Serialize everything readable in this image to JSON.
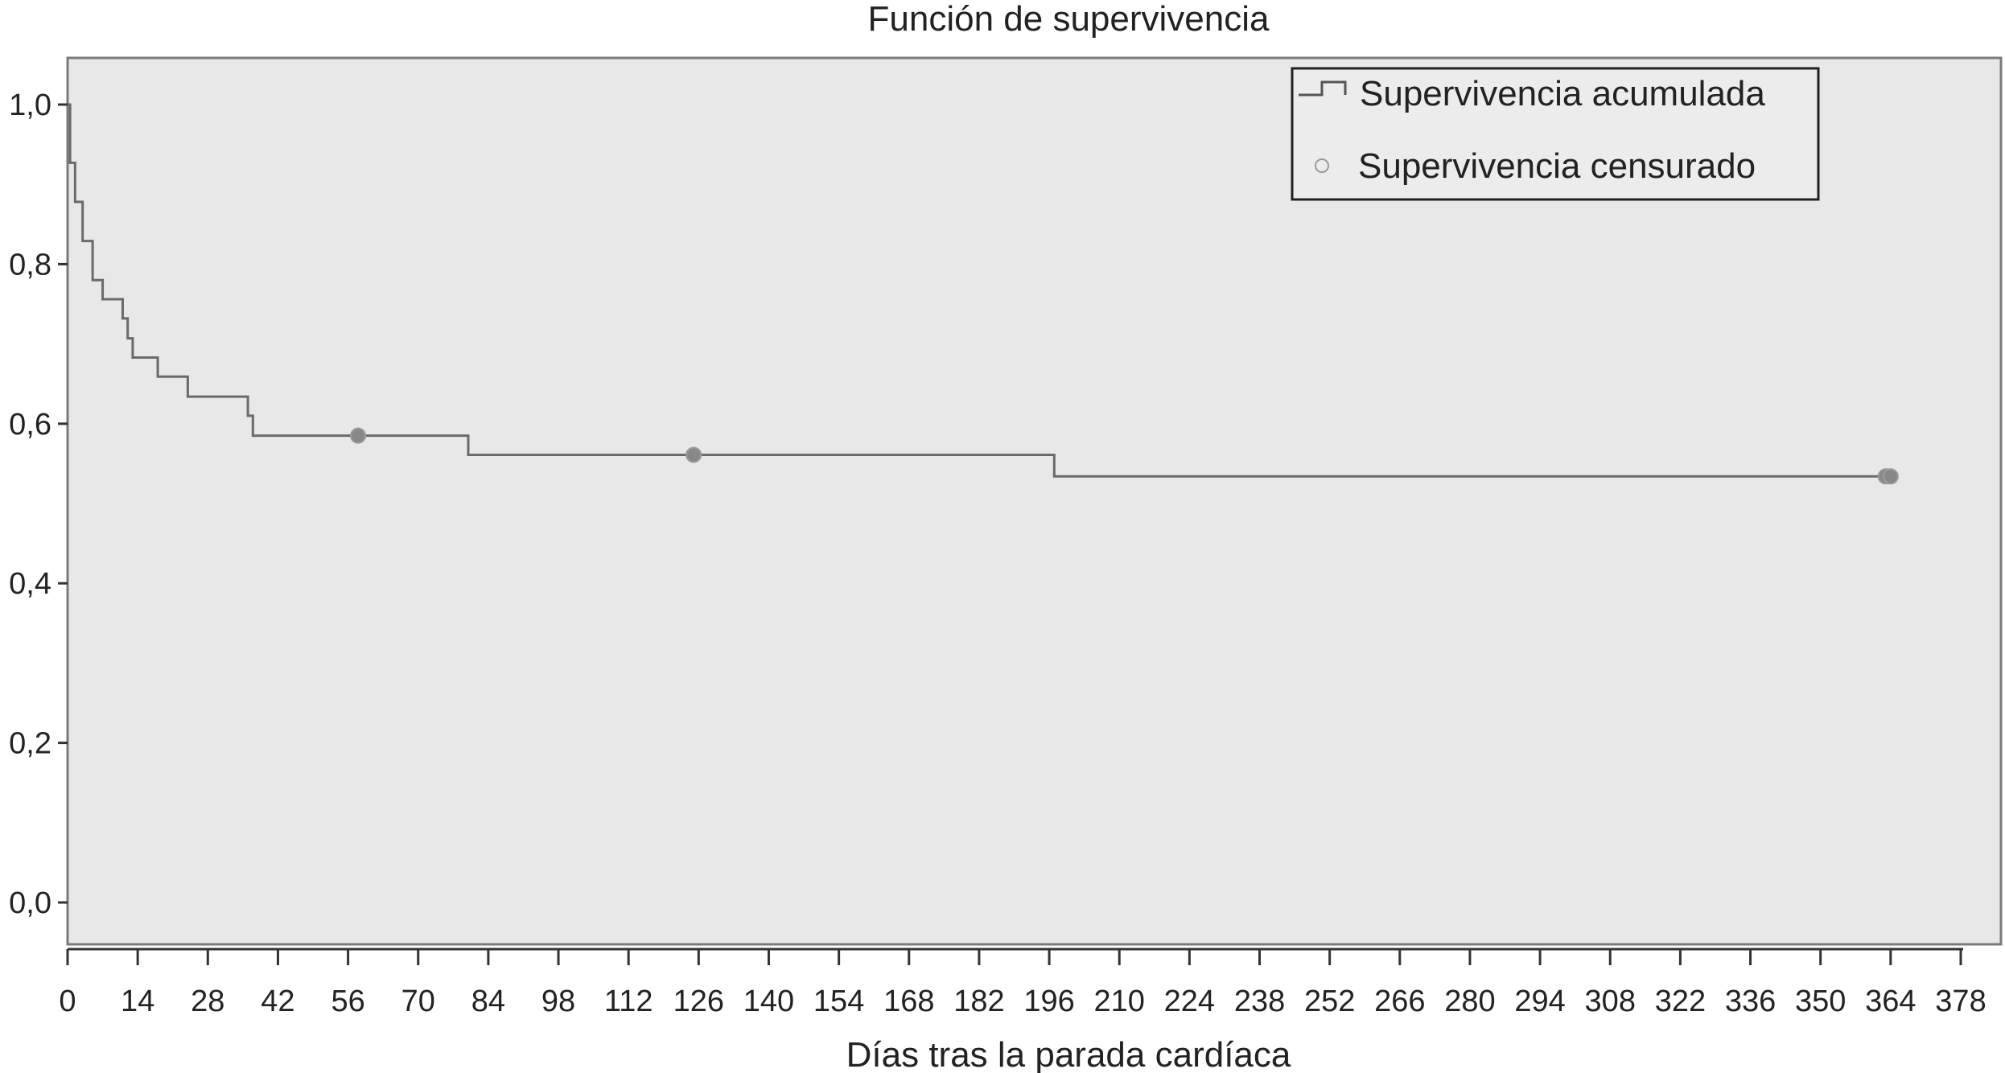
{
  "chart_data": {
    "type": "line",
    "title": "Función de supervivencia",
    "xlabel": "Días tras la parada cardíaca",
    "ylabel": "",
    "xlim": [
      0,
      378
    ],
    "ylim": [
      0,
      1
    ],
    "x_ticks": [
      0,
      14,
      28,
      42,
      56,
      70,
      84,
      98,
      112,
      126,
      140,
      154,
      168,
      182,
      196,
      210,
      224,
      238,
      252,
      266,
      280,
      294,
      308,
      322,
      336,
      350,
      364,
      378
    ],
    "x_tick_labels": [
      "0",
      "14",
      "28",
      "42",
      "56",
      "70",
      "84",
      "98",
      "112",
      "126",
      "140",
      "154",
      "168",
      "182",
      "196",
      "210",
      "224",
      "238",
      "252",
      "266",
      "280",
      "294",
      "308",
      "322",
      "336",
      "350",
      "364",
      "378"
    ],
    "y_ticks": [
      0,
      0.2,
      0.4,
      0.6,
      0.8,
      1.0
    ],
    "y_tick_labels": [
      "0,0",
      "0,2",
      "0,4",
      "0,6",
      "0,8",
      "1,0"
    ],
    "grid": false,
    "legend_position": "top-right",
    "series": [
      {
        "name": "Supervivencia acumulada",
        "kind": "step",
        "color": "#6a6a6a",
        "x": [
          0,
          0.5,
          1.5,
          3,
          5,
          7,
          11,
          12,
          13,
          18,
          24,
          36,
          37,
          80,
          197,
          364
        ],
        "y": [
          1.0,
          0.927,
          0.878,
          0.829,
          0.78,
          0.756,
          0.732,
          0.707,
          0.683,
          0.659,
          0.634,
          0.61,
          0.585,
          0.561,
          0.534,
          0.534
        ]
      },
      {
        "name": "Supervivencia censurado",
        "kind": "marker",
        "color": "#888888",
        "x": [
          58,
          125,
          363,
          364
        ],
        "y": [
          0.585,
          0.561,
          0.534,
          0.534
        ]
      }
    ]
  }
}
